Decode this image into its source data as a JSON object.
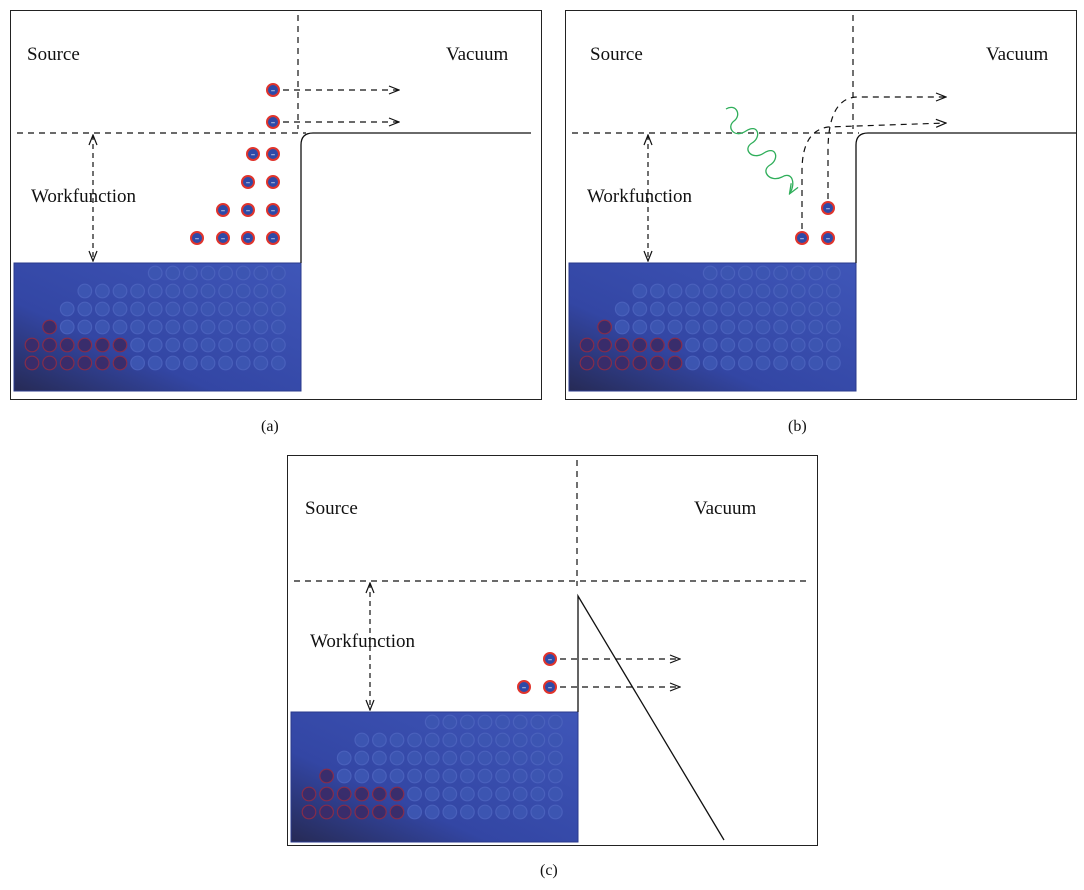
{
  "panels": [
    {
      "id": "a",
      "caption": "(a)",
      "source_label": "Source",
      "vacuum_label": "Vacuum",
      "workfunction_label": "Workfunction",
      "mechanism": "thermionic"
    },
    {
      "id": "b",
      "caption": "(b)",
      "source_label": "Source",
      "vacuum_label": "Vacuum",
      "workfunction_label": "Workfunction",
      "mechanism": "photo"
    },
    {
      "id": "c",
      "caption": "(c)",
      "source_label": "Source",
      "vacuum_label": "Vacuum",
      "workfunction_label": "Workfunction",
      "mechanism": "field"
    }
  ],
  "electron_symbol": "–",
  "colors": {
    "metal_fill": "#3a4fa6",
    "metal_edge": "#2a3a8c",
    "electron_fill": "#2e4aa8",
    "electron_ring": "#e0342c",
    "photon": "#2fae5a",
    "line": "#111111"
  }
}
